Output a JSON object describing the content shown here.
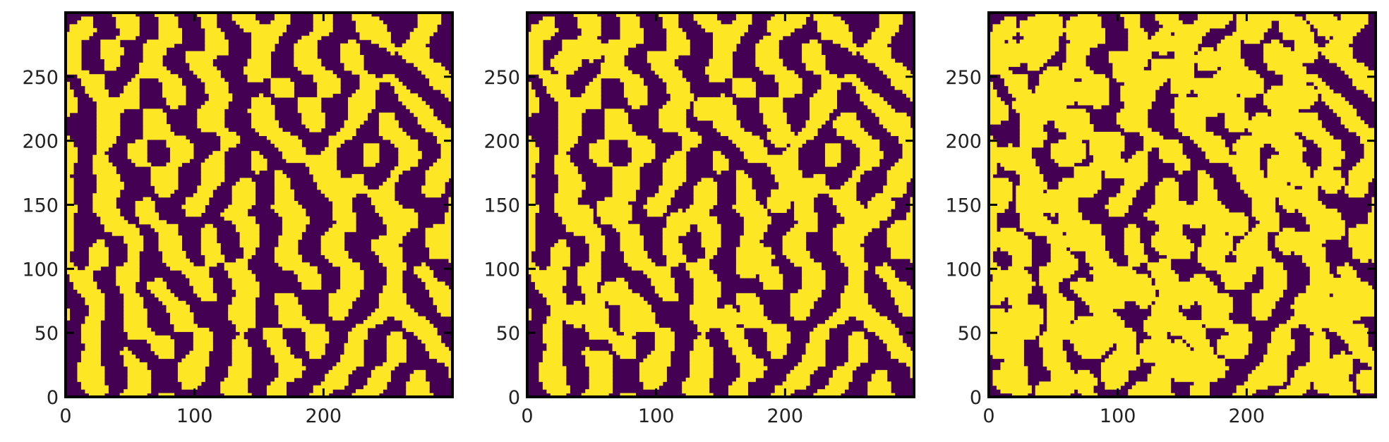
{
  "figure": {
    "background": "#ffffff"
  },
  "chart_data": [
    {
      "type": "heatmap",
      "title": "",
      "xlabel": "",
      "ylabel": "",
      "xlim": [
        0,
        300
      ],
      "ylim": [
        0,
        300
      ],
      "x_ticks": [
        "0",
        "100",
        "200"
      ],
      "y_ticks": [
        "0",
        "50",
        "100",
        "150",
        "200",
        "250"
      ],
      "colormap": "viridis",
      "values_present": [
        0,
        1
      ],
      "colors": {
        "0": "#440154",
        "1": "#fde725"
      },
      "description_of_field": "binary two-phase random microstructure",
      "circle_inclusions": 0
    },
    {
      "type": "heatmap",
      "title": "",
      "xlabel": "",
      "ylabel": "",
      "xlim": [
        0,
        300
      ],
      "ylim": [
        0,
        300
      ],
      "x_ticks": [
        "0",
        "100",
        "200"
      ],
      "y_ticks": [
        "0",
        "50",
        "100",
        "150",
        "200",
        "250"
      ],
      "colormap": "viridis",
      "values_present": [
        0,
        1
      ],
      "colors": {
        "0": "#440154",
        "1": "#fde725"
      },
      "description_of_field": "same microstructure with added circular inclusions",
      "circle_inclusions": 30
    },
    {
      "type": "heatmap",
      "title": "",
      "xlabel": "",
      "ylabel": "",
      "xlim": [
        0,
        300
      ],
      "ylim": [
        0,
        300
      ],
      "x_ticks": [
        "0",
        "100",
        "200"
      ],
      "y_ticks": [
        "0",
        "50",
        "100",
        "150",
        "200",
        "250"
      ],
      "colormap": "viridis",
      "values_present": [
        0,
        1
      ],
      "colors": {
        "0": "#440154",
        "1": "#fde725"
      },
      "description_of_field": "same microstructure with many added circular inclusions",
      "circle_inclusions": 150
    }
  ]
}
